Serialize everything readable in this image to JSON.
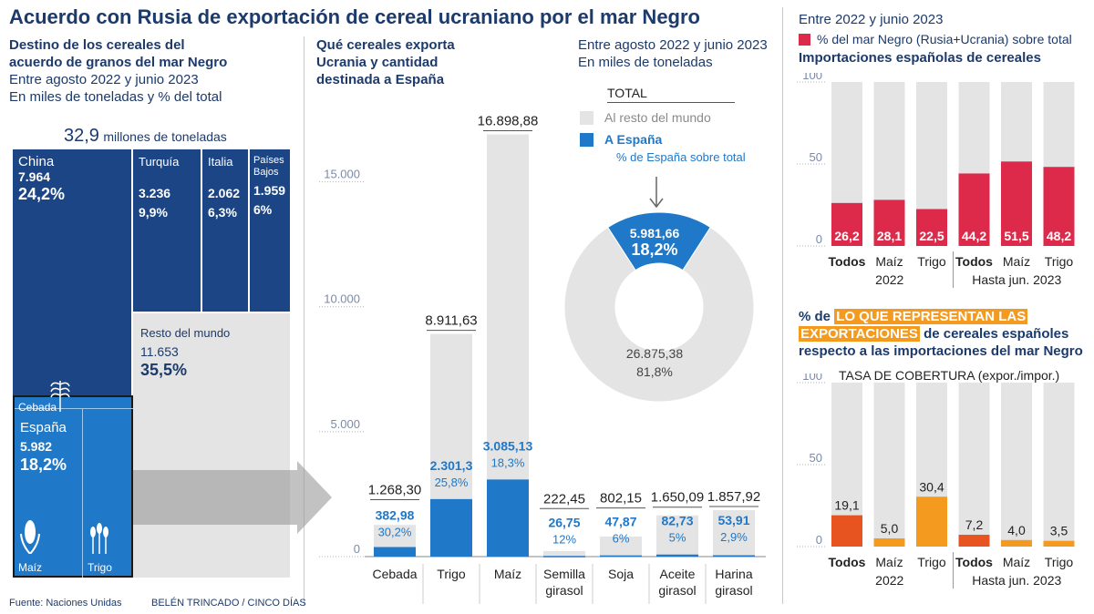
{
  "title": "Acuerdo con Rusia de exportación de cereal ucraniano por el mar Negro",
  "left": {
    "heading1": "Destino de los cereales del",
    "heading2": "acuerdo de granos del mar Negro",
    "sub1": "Entre agosto 2022 y junio 2023",
    "sub2": "En miles de toneladas y % del total",
    "total_value": "32,9",
    "total_unit": "millones de toneladas",
    "cells": {
      "china": {
        "name": "China",
        "value": "7.964",
        "pct": "24,2%"
      },
      "turquia": {
        "name": "Turquía",
        "value": "3.236",
        "pct": "9,9%"
      },
      "italia": {
        "name": "Italia",
        "value": "2.062",
        "pct": "6,3%"
      },
      "paises_bajos": {
        "name1": "Países",
        "name2": "Bajos",
        "value": "1.959",
        "pct": "6%"
      },
      "resto": {
        "name": "Resto del mundo",
        "value": "11.653",
        "pct": "35,5%"
      },
      "espana": {
        "name": "España",
        "value": "5.982",
        "pct": "18,2%"
      }
    },
    "icons": {
      "cebada": "Cebada",
      "maiz": "Maíz",
      "trigo": "Trigo"
    },
    "icon_names": [
      "wheat-icon",
      "corn-icon"
    ]
  },
  "middle": {
    "heading1": "Qué cereales exporta",
    "heading2": "Ucrania y cantidad",
    "heading3": "destinada a España"
  },
  "donut": {
    "heading1": "Entre agosto 2022 y junio 2023",
    "heading2": "En miles de toneladas",
    "legend_title": "TOTAL",
    "legend_rest": "Al resto del mundo",
    "legend_spain": "A España",
    "legend_pct": "% de España sobre total",
    "spain_value": "5.981,66",
    "spain_pct": "18,2%",
    "rest_value": "26.875,38",
    "rest_pct": "81,8%"
  },
  "right_top": {
    "heading1": "Entre 2022 y junio 2023",
    "legend": "% del mar Negro (Rusia+Ucrania) sobre total",
    "heading2": "Importaciones españolas de cereales",
    "group1": "2022",
    "group2": "Hasta jun. 2023"
  },
  "right_bottom": {
    "heading_pre": "% de",
    "heading_hl1": "LO QUE REPRESENTAN LAS",
    "heading_hl2": "EXPORTACIONES",
    "heading_post": "de cereales españoles",
    "heading3": "respecto a las importaciones del mar Negro",
    "subtitle": "TASA DE COBERTURA (expor./impor.)",
    "group1": "2022",
    "group2": "Hasta jun. 2023"
  },
  "footer": {
    "source": "Fuente: Naciones Unidas",
    "credit": "BELÉN TRINCADO / CINCO DÍAS"
  },
  "colors": {
    "navy": "#1c4585",
    "blue": "#1f78c8",
    "grey": "#e4e4e4",
    "red": "#dd2a4b",
    "orange_dark": "#e8541f",
    "orange": "#f39a1f"
  },
  "chart_data": [
    {
      "type": "bar",
      "title": "Qué cereales exporta Ucrania y cantidad destinada a España",
      "categories": [
        "Cebada",
        "Trigo",
        "Maíz",
        "Semilla girasol",
        "Soja",
        "Aceite girasol",
        "Harina girasol"
      ],
      "category_lines": [
        [
          "Cebada"
        ],
        [
          "Trigo"
        ],
        [
          "Maíz"
        ],
        [
          "Semilla",
          "girasol"
        ],
        [
          "Soja"
        ],
        [
          "Aceite",
          "girasol"
        ],
        [
          "Harina",
          "girasol"
        ]
      ],
      "series": [
        {
          "name": "TOTAL",
          "values": [
            1268.3,
            8911.63,
            16898.88,
            222.45,
            802.15,
            1650.09,
            1857.92
          ]
        },
        {
          "name": "A España",
          "values": [
            382.98,
            2301.3,
            3085.13,
            26.75,
            47.87,
            82.73,
            53.91
          ]
        }
      ],
      "total_labels": [
        "1.268,30",
        "8.911,63",
        "16.898,88",
        "222,45",
        "802,15",
        "1.650,09",
        "1.857,92"
      ],
      "spain_labels": [
        "382,98",
        "2.301,3",
        "3.085,13",
        "26,75",
        "47,87",
        "82,73",
        "53,91"
      ],
      "spain_pct_labels": [
        "30,2%",
        "25,8%",
        "18,3%",
        "12%",
        "6%",
        "5%",
        "2,9%"
      ],
      "yticks": [
        0,
        5000,
        10000,
        15000
      ],
      "ytick_labels": [
        "0",
        "5.000",
        "10.000",
        "15.000"
      ],
      "ylim": [
        0,
        17500
      ]
    },
    {
      "type": "pie",
      "title": "TOTAL",
      "labels": [
        "A España",
        "Al resto del mundo"
      ],
      "values": [
        5981.66,
        26875.38
      ],
      "pct": [
        18.2,
        81.8
      ]
    },
    {
      "type": "bar",
      "title": "Importaciones españolas de cereales",
      "categories": [
        "Todos",
        "Maíz",
        "Trigo",
        "Todos",
        "Maíz",
        "Trigo"
      ],
      "groups": [
        "2022",
        "Hasta jun. 2023"
      ],
      "series": [
        {
          "name": "% del mar Negro (Rusia+Ucrania) sobre total",
          "values": [
            26.2,
            28.1,
            22.5,
            44.2,
            51.5,
            48.2
          ]
        }
      ],
      "value_labels": [
        "26,2",
        "28,1",
        "22,5",
        "44,2",
        "51,5",
        "48,2"
      ],
      "yticks": [
        0,
        50,
        100
      ],
      "ylim": [
        0,
        100
      ]
    },
    {
      "type": "bar",
      "title": "TASA DE COBERTURA (expor./impor.)",
      "categories": [
        "Todos",
        "Maíz",
        "Trigo",
        "Todos",
        "Maíz",
        "Trigo"
      ],
      "groups": [
        "2022",
        "Hasta jun. 2023"
      ],
      "values": [
        19.1,
        5.0,
        30.4,
        7.2,
        4.0,
        3.5
      ],
      "value_labels": [
        "19,1",
        "5,0",
        "30,4",
        "7,2",
        "4,0",
        "3,5"
      ],
      "yticks": [
        0,
        50,
        100
      ],
      "ylim": [
        0,
        100
      ]
    }
  ]
}
